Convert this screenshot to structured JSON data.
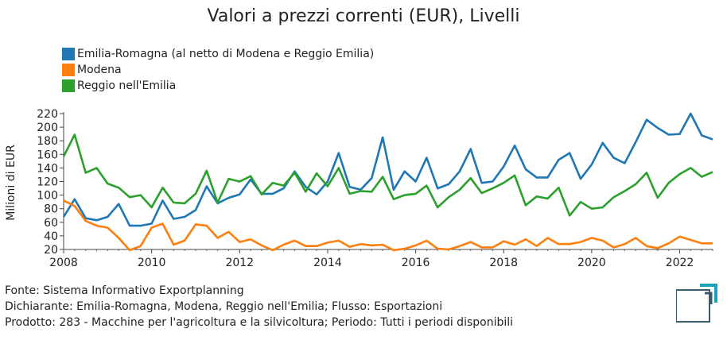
{
  "chart_data": {
    "type": "line",
    "title": "Valori a prezzi correnti (EUR), Livelli",
    "ylabel": "Milioni di EUR",
    "xlabel": "",
    "ylim": [
      20,
      220
    ],
    "yticks": [
      20,
      40,
      60,
      80,
      100,
      120,
      140,
      160,
      180,
      200,
      220
    ],
    "xlim": [
      2008,
      2022.75
    ],
    "xticks": [
      2008,
      2010,
      2012,
      2014,
      2016,
      2018,
      2020,
      2022
    ],
    "x_unit": "quarter",
    "x": [
      2008.0,
      2008.25,
      2008.5,
      2008.75,
      2009.0,
      2009.25,
      2009.5,
      2009.75,
      2010.0,
      2010.25,
      2010.5,
      2010.75,
      2011.0,
      2011.25,
      2011.5,
      2011.75,
      2012.0,
      2012.25,
      2012.5,
      2012.75,
      2013.0,
      2013.25,
      2013.5,
      2013.75,
      2014.0,
      2014.25,
      2014.5,
      2014.75,
      2015.0,
      2015.25,
      2015.5,
      2015.75,
      2016.0,
      2016.25,
      2016.5,
      2016.75,
      2017.0,
      2017.25,
      2017.5,
      2017.75,
      2018.0,
      2018.25,
      2018.5,
      2018.75,
      2019.0,
      2019.25,
      2019.5,
      2019.75,
      2020.0,
      2020.25,
      2020.5,
      2020.75,
      2021.0,
      2021.25,
      2021.5,
      2021.75,
      2022.0,
      2022.25,
      2022.5,
      2022.75
    ],
    "series": [
      {
        "name": "Emilia-Romagna (al netto di Modena e Reggio Emilia)",
        "color": "#1f77b4",
        "values": [
          68,
          94,
          66,
          63,
          68,
          87,
          55,
          55,
          58,
          92,
          65,
          68,
          78,
          113,
          88,
          96,
          101,
          123,
          102,
          102,
          110,
          135,
          112,
          101,
          120,
          162,
          112,
          108,
          125,
          185,
          108,
          135,
          120,
          155,
          110,
          116,
          135,
          168,
          118,
          120,
          142,
          173,
          138,
          126,
          126,
          152,
          162,
          124,
          145,
          177,
          155,
          147,
          178,
          211,
          199,
          189,
          190,
          220,
          188,
          182
        ]
      },
      {
        "name": "Modena",
        "color": "#ff7f0e",
        "values": [
          92,
          84,
          62,
          55,
          52,
          37,
          19,
          25,
          52,
          58,
          27,
          33,
          57,
          55,
          37,
          46,
          31,
          35,
          26,
          19,
          27,
          33,
          25,
          25,
          30,
          33,
          24,
          28,
          26,
          27,
          19,
          21,
          26,
          33,
          21,
          20,
          25,
          31,
          23,
          23,
          32,
          27,
          35,
          25,
          37,
          28,
          28,
          31,
          37,
          33,
          23,
          28,
          37,
          25,
          22,
          29,
          39,
          34,
          29,
          29
        ]
      },
      {
        "name": "Reggio nell'Emilia",
        "color": "#2ca02c",
        "values": [
          157,
          189,
          133,
          140,
          117,
          111,
          97,
          100,
          82,
          111,
          89,
          88,
          102,
          136,
          89,
          124,
          120,
          128,
          101,
          118,
          114,
          133,
          105,
          132,
          113,
          140,
          102,
          106,
          105,
          127,
          94,
          100,
          102,
          114,
          82,
          97,
          108,
          125,
          103,
          110,
          118,
          129,
          85,
          98,
          95,
          111,
          70,
          90,
          80,
          82,
          97,
          106,
          116,
          133,
          96,
          118,
          131,
          140,
          127,
          134
        ]
      }
    ]
  },
  "footer": {
    "line1": "Fonte: Sistema Informativo Exportplanning",
    "line2": "Dichiarante: Emilia-Romagna, Modena, Reggio nell'Emilia; Flusso: Esportazioni",
    "line3": "Prodotto: 283 - Macchine per l'agricoltura e la silvicoltura; Periodo: Tutti i periodi disponibili"
  },
  "logo": {
    "icon": "exportplanning-logo-icon",
    "color_dark": "#3d5a6b",
    "color_accent": "#1aa3b8"
  }
}
